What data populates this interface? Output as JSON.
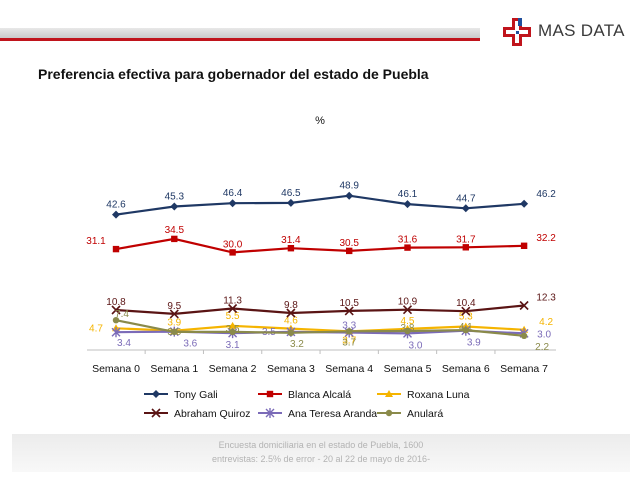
{
  "brand": {
    "name": "MAS DATA",
    "accent": "#c0141c",
    "logo_blue": "#1f4e9c"
  },
  "title": "Preferencia efectiva para gobernador del estado de Puebla",
  "footer": {
    "line1": "Encuesta domiciliaria en el estado de Puebla, 1600",
    "line2": "entrevistas: 2.5% de error - 20 al 22 de mayo de 2016-"
  },
  "chart_data": {
    "type": "line",
    "title": "Preferencia efectiva para gobernador del estado de Puebla",
    "ylabel": "%",
    "ylim": [
      0,
      55
    ],
    "grid": false,
    "legend_position": "bottom",
    "categories": [
      "Semana 0",
      "Semana 1",
      "Semana 2",
      "Semana 3",
      "Semana 4",
      "Semana 5",
      "Semana 6",
      "Semana 7"
    ],
    "series": [
      {
        "name": "Tony Gali",
        "color": "#1f3864",
        "marker": "diamond",
        "values": [
          42.6,
          45.3,
          46.4,
          46.5,
          48.9,
          46.1,
          44.7,
          46.2
        ]
      },
      {
        "name": "Blanca Alcalá",
        "color": "#c00000",
        "marker": "square",
        "values": [
          31.1,
          34.5,
          30.0,
          31.4,
          30.5,
          31.6,
          31.7,
          32.2
        ]
      },
      {
        "name": "Roxana Luna",
        "color": "#f5b400",
        "marker": "triangle",
        "values": [
          4.7,
          3.9,
          5.5,
          4.6,
          3.7,
          4.5,
          5.3,
          4.2
        ]
      },
      {
        "name": "Abraham Quiroz",
        "color": "#5a1414",
        "marker": "x",
        "values": [
          10.8,
          9.5,
          11.3,
          9.8,
          10.5,
          10.9,
          10.4,
          12.3
        ]
      },
      {
        "name": "Ana Teresa Aranda",
        "color": "#7b6bb8",
        "marker": "star",
        "values": [
          3.4,
          3.6,
          3.1,
          3.5,
          3.3,
          3.0,
          3.9,
          3.0
        ]
      },
      {
        "name": "Anulará",
        "color": "#8a8a4a",
        "marker": "circle",
        "values": [
          7.4,
          3.5,
          3.5,
          3.2,
          3.7,
          3.8,
          4.1,
          2.2
        ]
      }
    ]
  }
}
